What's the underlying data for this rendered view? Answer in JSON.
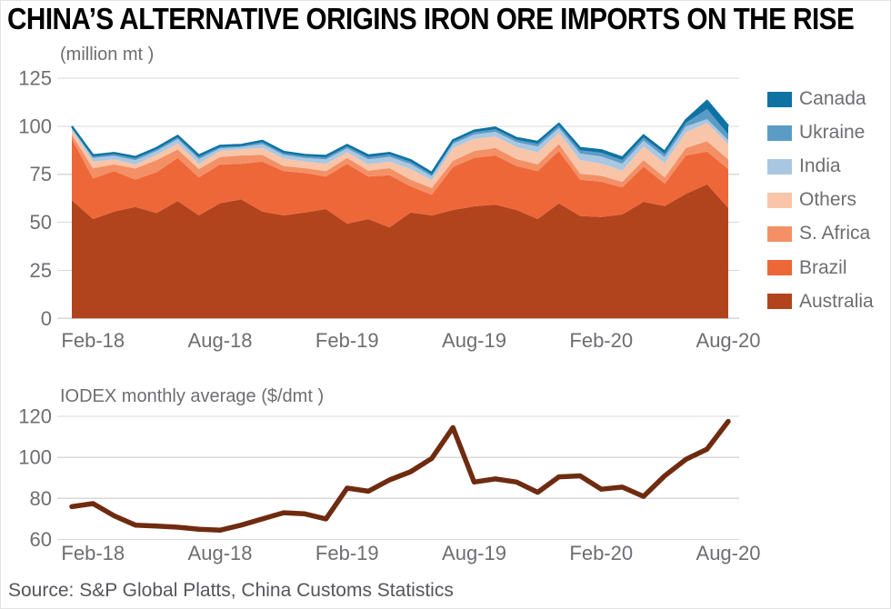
{
  "header": {
    "title": "CHINA’S ALTERNATIVE ORIGINS IRON ORE IMPORTS ON THE RISE"
  },
  "footer": {
    "source": "Source: S&P Global Platts, China Customs Statistics"
  },
  "styles": {
    "background": "#ffffff",
    "grid_color": "#d8d8d8",
    "axis_text_color": "#6d6e71",
    "title_color": "#000000",
    "source_color": "#55565a"
  },
  "chart_data": [
    {
      "type": "area",
      "stacked": true,
      "unit_label": "(million mt )",
      "n_points": 32,
      "months": [
        "Jan-18",
        "Feb-18",
        "Mar-18",
        "Apr-18",
        "May-18",
        "Jun-18",
        "Jul-18",
        "Aug-18",
        "Sep-18",
        "Oct-18",
        "Nov-18",
        "Dec-18",
        "Jan-19",
        "Feb-19",
        "Mar-19",
        "Apr-19",
        "May-19",
        "Jun-19",
        "Jul-19",
        "Aug-19",
        "Sep-19",
        "Oct-19",
        "Nov-19",
        "Dec-19",
        "Jan-20",
        "Feb-20",
        "Mar-20",
        "Apr-20",
        "May-20",
        "Jun-20",
        "Jul-20",
        "Aug-20"
      ],
      "x_tick_labels": [
        "Feb-18",
        "Aug-18",
        "Feb-19",
        "Aug-19",
        "Feb-20",
        "Aug-20"
      ],
      "x_tick_indices": [
        1,
        7,
        13,
        19,
        25,
        31
      ],
      "yticks": [
        0,
        25,
        50,
        75,
        100,
        125
      ],
      "ylim": [
        0,
        125
      ],
      "grid": true,
      "legend_position": "right",
      "legend_order_top_to_bottom": [
        "Canada",
        "Ukraine",
        "India",
        "Others",
        "S. Africa",
        "Brazil",
        "Australia"
      ],
      "top_edge_stroke": "#0e72a3",
      "series": [
        {
          "name": "Australia",
          "color": "#b2441d",
          "values": [
            61.5,
            51.7,
            55.6,
            58.0,
            54.8,
            61.1,
            53.6,
            59.9,
            61.9,
            55.6,
            53.6,
            55.1,
            56.9,
            49.3,
            51.7,
            47.3,
            55.1,
            53.6,
            56.4,
            58.3,
            59.2,
            56.4,
            51.7,
            59.9,
            53.3,
            52.8,
            54.1,
            60.7,
            58.5,
            64.8,
            69.8,
            57.5
          ]
        },
        {
          "name": "Brazil",
          "color": "#ee6738",
          "values": [
            32.0,
            21.1,
            21.0,
            14.2,
            21.3,
            22.4,
            19.7,
            20.2,
            18.5,
            26.0,
            23.0,
            20.6,
            16.9,
            31.1,
            22.1,
            27.2,
            13.6,
            10.7,
            22.4,
            25.2,
            25.6,
            22.9,
            24.9,
            27.2,
            18.9,
            18.3,
            14.1,
            18.3,
            11.6,
            20.0,
            17.0,
            20.2
          ]
        },
        {
          "name": "S. Africa",
          "color": "#f49066",
          "values": [
            2.0,
            5.4,
            3.5,
            5.8,
            6.3,
            4.4,
            4.4,
            3.9,
            4.4,
            3.5,
            2.7,
            2.5,
            2.8,
            3.1,
            3.1,
            3.7,
            3.5,
            3.5,
            3.2,
            3.6,
            3.9,
            3.6,
            3.5,
            3.7,
            3.1,
            3.1,
            2.9,
            3.4,
            3.2,
            3.9,
            5.4,
            5.0
          ]
        },
        {
          "name": "Others",
          "color": "#f9c5a8",
          "values": [
            2.5,
            3.4,
            2.6,
            2.1,
            2.7,
            3.2,
            2.7,
            3.1,
            3.1,
            3.6,
            3.9,
            3.4,
            3.8,
            2.9,
            3.2,
            3.4,
            5.5,
            4.1,
            6.7,
            6.3,
            5.9,
            6.3,
            6.3,
            5.8,
            7.1,
            6.3,
            5.8,
            7.1,
            7.5,
            8.2,
            9.5,
            7.9
          ]
        },
        {
          "name": "India",
          "color": "#aac7e2",
          "values": [
            1.0,
            1.9,
            1.9,
            2.2,
            2.0,
            2.2,
            2.5,
            1.4,
            1.2,
            2.0,
            1.9,
            1.9,
            2.3,
            2.1,
            2.6,
            2.5,
            2.6,
            2.0,
            2.1,
            2.3,
            2.5,
            2.5,
            3.0,
            2.5,
            3.4,
            3.8,
            3.6,
            3.0,
            3.1,
            3.0,
            2.0,
            2.1
          ]
        },
        {
          "name": "Ukraine",
          "color": "#5b9cc6",
          "values": [
            0.6,
            0.8,
            0.9,
            1.0,
            0.9,
            1.0,
            1.1,
            0.8,
            0.7,
            1.0,
            0.9,
            0.9,
            1.0,
            1.0,
            1.2,
            1.2,
            1.2,
            1.0,
            1.1,
            1.2,
            1.3,
            1.3,
            1.5,
            1.3,
            1.7,
            1.9,
            1.9,
            1.6,
            1.7,
            1.9,
            5.2,
            3.1
          ]
        },
        {
          "name": "Canada",
          "color": "#0e72a3",
          "values": [
            0.4,
            0.6,
            0.6,
            0.7,
            0.7,
            0.7,
            0.8,
            0.5,
            0.5,
            0.7,
            0.7,
            0.7,
            0.8,
            0.8,
            0.9,
            0.8,
            0.9,
            0.8,
            0.8,
            0.8,
            0.9,
            0.9,
            1.0,
            0.9,
            1.2,
            1.3,
            1.3,
            1.2,
            1.2,
            1.4,
            4.3,
            4.3
          ]
        }
      ]
    },
    {
      "type": "line",
      "title": "IODEX monthly average ($/dmt )",
      "color": "#6f2b10",
      "n_points": 32,
      "months": [
        "Jan-18",
        "Feb-18",
        "Mar-18",
        "Apr-18",
        "May-18",
        "Jun-18",
        "Jul-18",
        "Aug-18",
        "Sep-18",
        "Oct-18",
        "Nov-18",
        "Dec-18",
        "Jan-19",
        "Feb-19",
        "Mar-19",
        "Apr-19",
        "May-19",
        "Jun-19",
        "Jul-19",
        "Aug-19",
        "Sep-19",
        "Oct-19",
        "Nov-19",
        "Dec-19",
        "Jan-20",
        "Feb-20",
        "Mar-20",
        "Apr-20",
        "May-20",
        "Jun-20",
        "Jul-20",
        "Aug-20"
      ],
      "x_tick_labels": [
        "Feb-18",
        "Aug-18",
        "Feb-19",
        "Aug-19",
        "Feb-20",
        "Aug-20"
      ],
      "x_tick_indices": [
        1,
        7,
        13,
        19,
        25,
        31
      ],
      "yticks": [
        60,
        80,
        100,
        120
      ],
      "ylim": [
        60,
        125
      ],
      "grid": true,
      "values": [
        76,
        77.5,
        71.5,
        67,
        66.5,
        66,
        65,
        64.5,
        67,
        70,
        73,
        72.5,
        70,
        85,
        83.5,
        89,
        93,
        99.5,
        114.5,
        88,
        89.5,
        88,
        83,
        90.5,
        91,
        84.5,
        85.5,
        81,
        91,
        99,
        104,
        117.5
      ]
    }
  ]
}
